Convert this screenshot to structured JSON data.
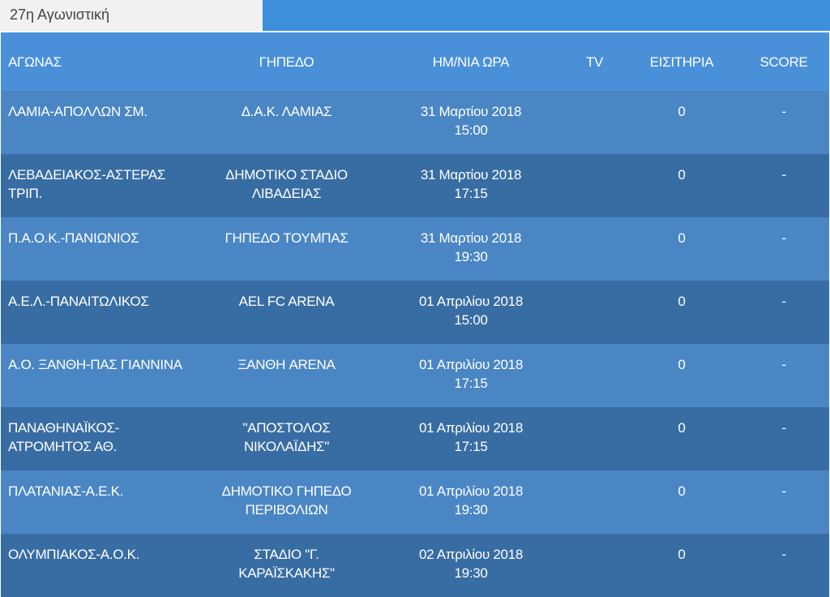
{
  "tab": {
    "title": "27η Αγωνιστική"
  },
  "table": {
    "headers": [
      "ΑΓΩΝΑΣ",
      "ΓΗΠΕΔΟ",
      "ΗΜ/ΝΙΑ ΩΡΑ",
      "TV",
      "ΕΙΣΙΤΗΡΙΑ",
      "SCORE"
    ],
    "rows": [
      {
        "match": "ΛΑΜΙΑ-ΑΠΟΛΛΩΝ ΣΜ.",
        "stadium": "Δ.Α.Κ. ΛΑΜΙΑΣ",
        "date": "31 Μαρτίου 2018",
        "time": "15:00",
        "tickets": "0",
        "score": "-"
      },
      {
        "match": "ΛΕΒΑΔΕΙΑΚΟΣ-ΑΣΤΕΡΑΣ ΤΡΙΠ.",
        "stadium": "ΔΗΜΟΤΙΚΟ ΣΤΑΔΙΟ ΛΙΒΑΔΕΙΑΣ",
        "date": "31 Μαρτίου 2018",
        "time": "17:15",
        "tickets": "0",
        "score": "-"
      },
      {
        "match": "Π.Α.Ο.Κ.-ΠΑΝΙΩΝΙΟΣ",
        "stadium": "ΓΗΠΕΔΟ ΤΟΥΜΠΑΣ",
        "date": "31 Μαρτίου 2018",
        "time": "19:30",
        "tickets": "0",
        "score": "-"
      },
      {
        "match": "Α.Ε.Λ.-ΠΑΝΑΙΤΩΛΙΚΟΣ",
        "stadium": "AEL FC ARENA",
        "date": "01 Απριλίου 2018",
        "time": "15:00",
        "tickets": "0",
        "score": "-"
      },
      {
        "match": "Α.Ο. ΞΑΝΘΗ-ΠΑΣ ΓΙΑΝΝΙΝΑ",
        "stadium": "ΞΑΝΘΗ ARENA",
        "date": "01 Απριλίου 2018",
        "time": "17:15",
        "tickets": "0",
        "score": "-"
      },
      {
        "match": "ΠΑΝΑΘΗΝΑΪΚΟΣ-ΑΤΡΟΜΗΤΟΣ ΑΘ.",
        "stadium": "\"ΑΠΟΣΤΟΛΟΣ ΝΙΚΟΛΑΪΔΗΣ\"",
        "date": "01 Απριλίου 2018",
        "time": "17:15",
        "tickets": "0",
        "score": "-"
      },
      {
        "match": "ΠΛΑΤΑΝΙΑΣ-Α.Ε.Κ.",
        "stadium": "ΔΗΜΟΤΙΚΟ ΓΗΠΕΔΟ ΠΕΡΙΒΟΛΙΩΝ",
        "date": "01 Απριλίου 2018",
        "time": "19:30",
        "tickets": "0",
        "score": "-"
      },
      {
        "match": "ΟΛΥΜΠΙΑΚΟΣ-Α.Ο.Κ.",
        "stadium": "ΣΤΑΔΙΟ \"Γ. ΚΑΡΑΪΣΚΑΚΗΣ\"",
        "date": "02 Απριλίου 2018",
        "time": "19:30",
        "tickets": "0",
        "score": "-"
      }
    ]
  }
}
